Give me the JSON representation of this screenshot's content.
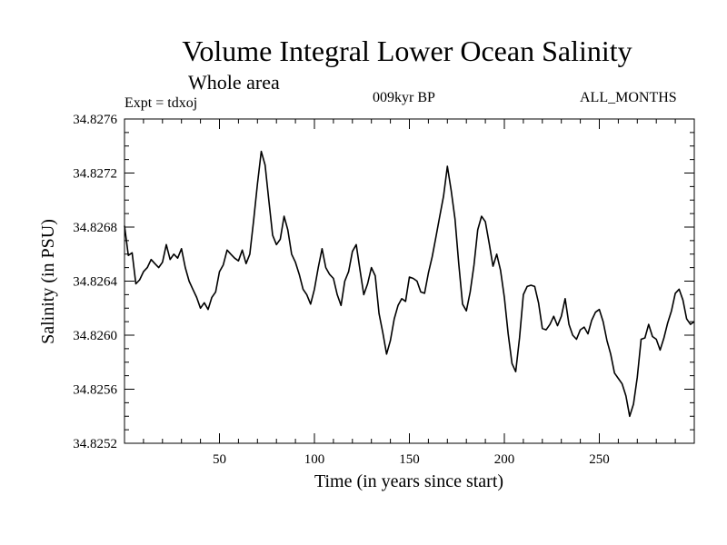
{
  "header": {
    "title": "Volume Integral Lower Ocean Salinity",
    "subtitle": "Whole area",
    "expt": "Expt = tdxoj",
    "era": "009kyr BP",
    "months": "ALL_MONTHS"
  },
  "chart_data": {
    "type": "line",
    "title": "Volume Integral Lower Ocean Salinity",
    "subtitle": "Whole area",
    "xlabel": "Time (in years since start)",
    "ylabel": "Salinity (in PSU)",
    "xlim": [
      0,
      300
    ],
    "ylim": [
      34.8252,
      34.8276
    ],
    "xticks": [
      50,
      100,
      150,
      200,
      250
    ],
    "yticks": [
      34.8252,
      34.8256,
      34.826,
      34.8264,
      34.8268,
      34.8272,
      34.8276
    ],
    "ytick_labels": [
      "34.8252",
      "34.8256",
      "34.8260",
      "34.8264",
      "34.8268",
      "34.8272",
      "34.8276"
    ],
    "grid": false,
    "line_color": "#000000",
    "series": [
      {
        "x": [
          0,
          2,
          4,
          6,
          8,
          10,
          12,
          14,
          16,
          18,
          20,
          22,
          24,
          26,
          28,
          30,
          32,
          34,
          36,
          38,
          40,
          42,
          44,
          46,
          48,
          50,
          52,
          54,
          56,
          58,
          60,
          62,
          64,
          66,
          68,
          70,
          72,
          74,
          76,
          78,
          80,
          82,
          84,
          86,
          88,
          90,
          92,
          94,
          96,
          98,
          100,
          102,
          104,
          106,
          108,
          110,
          112,
          114,
          116,
          118,
          120,
          122,
          124,
          126,
          128,
          130,
          132,
          134,
          136,
          138,
          140,
          142,
          144,
          146,
          148,
          150,
          152,
          154,
          156,
          158,
          160,
          162,
          164,
          166,
          168,
          170,
          172,
          174,
          176,
          178,
          180,
          182,
          184,
          186,
          188,
          190,
          192,
          194,
          196,
          198,
          200,
          202,
          204,
          206,
          208,
          210,
          212,
          214,
          216,
          218,
          220,
          222,
          224,
          226,
          228,
          230,
          232,
          234,
          236,
          238,
          240,
          242,
          244,
          246,
          248,
          250,
          252,
          254,
          256,
          258,
          260,
          262,
          264,
          266,
          268,
          270,
          272,
          274,
          276,
          278,
          280,
          282,
          284,
          286,
          288,
          290,
          292,
          294,
          296,
          298,
          300
        ],
        "y": [
          34.82681,
          34.82659,
          34.82661,
          34.82638,
          34.82641,
          34.82647,
          34.8265,
          34.82656,
          34.82653,
          34.8265,
          34.82654,
          34.82667,
          34.82656,
          34.8266,
          34.82657,
          34.82664,
          34.8265,
          34.8264,
          34.82634,
          34.82628,
          34.8262,
          34.82624,
          34.82619,
          34.82628,
          34.82632,
          34.82647,
          34.82652,
          34.82663,
          34.8266,
          34.82657,
          34.82655,
          34.82663,
          34.82653,
          34.8266,
          34.82685,
          34.82712,
          34.82736,
          34.82726,
          34.827,
          34.82674,
          34.82667,
          34.82671,
          34.82688,
          34.82678,
          34.8266,
          34.82654,
          34.82645,
          34.82634,
          34.8263,
          34.82623,
          34.82634,
          34.8265,
          34.82664,
          34.8265,
          34.82645,
          34.82642,
          34.8263,
          34.82622,
          34.8264,
          34.82647,
          34.82662,
          34.82667,
          34.82648,
          34.8263,
          34.82638,
          34.8265,
          34.82644,
          34.82616,
          34.82602,
          34.82586,
          34.82596,
          34.82612,
          34.82622,
          34.82627,
          34.82625,
          34.82643,
          34.82642,
          34.8264,
          34.82632,
          34.82631,
          34.82646,
          34.82658,
          34.82673,
          34.82688,
          34.82703,
          34.82725,
          34.82707,
          34.82686,
          34.82653,
          34.82623,
          34.82618,
          34.82632,
          34.82652,
          34.82678,
          34.82688,
          34.82684,
          34.82668,
          34.82651,
          34.8266,
          34.82648,
          34.82628,
          34.82601,
          34.82579,
          34.82573,
          34.82598,
          34.8263,
          34.82636,
          34.82637,
          34.82636,
          34.82624,
          34.82605,
          34.82604,
          34.82608,
          34.82614,
          34.82607,
          34.82614,
          34.82627,
          34.82608,
          34.826,
          34.82597,
          34.82604,
          34.82606,
          34.82601,
          34.82611,
          34.82617,
          34.82619,
          34.8261,
          34.82596,
          34.82586,
          34.82572,
          34.82568,
          34.82564,
          34.82555,
          34.8254,
          34.82549,
          34.82569,
          34.82597,
          34.82598,
          34.82608,
          34.82599,
          34.82597,
          34.82589,
          34.82598,
          34.82609,
          34.82618,
          34.82631,
          34.82634,
          34.82626,
          34.82612,
          34.82608,
          34.8261
        ]
      }
    ]
  }
}
